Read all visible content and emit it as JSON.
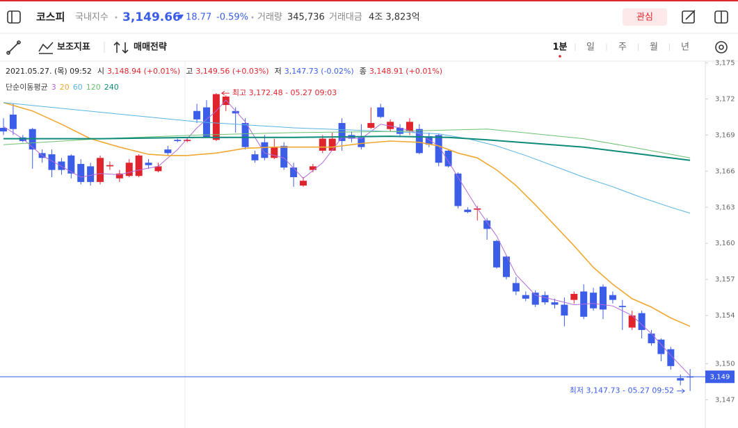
{
  "header": {
    "name": "코스피",
    "market": "국내지수",
    "price": "3,149.66",
    "change": "18.77",
    "change_rate": "-0.59%",
    "volume_label": "거래량",
    "volume": "345,736",
    "amount_label": "거래대금",
    "amount": "4조 3,823억",
    "watch": "관심"
  },
  "toolbar": {
    "indicators": "보조지표",
    "strategy": "매매전략",
    "periods": [
      "1분",
      "일",
      "주",
      "월",
      "년"
    ],
    "selected": 0
  },
  "chart_data": {
    "type": "candlestick",
    "info": {
      "date": "2021.05.27. (목) 09:52",
      "items": [
        {
          "name": "시",
          "value": "3,148.94 (+0.01%)",
          "color": "#e0242e"
        },
        {
          "name": "고",
          "value": "3,149.56 (+0.03%)",
          "color": "#e0242e"
        },
        {
          "name": "저",
          "value": "3,147.73 (-0.02%)",
          "color": "#3b5de7"
        },
        {
          "name": "종",
          "value": "3,148.91 (+0.01%)",
          "color": "#e0242e"
        }
      ]
    },
    "ma_title": "단순이동평균",
    "up_color": "#e0242e",
    "down_color": "#3b5de7",
    "ohlc": {
      "open": [
        3169.6,
        3170.7,
        3168.8,
        3169.5,
        3167.5,
        3167.4,
        3166.8,
        3167.3,
        3166.6,
        3166.4,
        3165.1,
        3166.4,
        3165.4,
        3165.6,
        3165.6,
        3166.7,
        3166.0,
        3167.8,
        3168.6,
        3168.5,
        3171.0,
        3171.3,
        3168.6,
        3171.5,
        3171.0,
        3170.0,
        3167.4,
        3168.4,
        3167.1,
        3168.1,
        3166.3,
        3164.8,
        3166.1,
        3167.7,
        3167.7,
        3170.0,
        3169.0,
        3168.8,
        3169.6,
        3171.3,
        3169.5,
        3169.6,
        3169.3,
        3169.5,
        3168.9,
        3169.0,
        3167.7,
        3165.8,
        3162.8,
        3162.8,
        3161.9,
        3160.2,
        3158.9,
        3156.7,
        3155.7,
        3155.9,
        3155.7,
        3155.1,
        3154.9,
        3155.3,
        3156.0,
        3155.9,
        3156.4,
        3155.7,
        3154.8,
        3153.0,
        3154.2,
        3152.5,
        3152.0,
        3151.2,
        3148.8,
        3148.94
      ],
      "high": [
        3170.4,
        3171.6,
        3169.0,
        3169.6,
        3167.8,
        3167.8,
        3167.1,
        3167.4,
        3167.0,
        3166.7,
        3167.3,
        3166.8,
        3166.1,
        3167.0,
        3167.4,
        3167.0,
        3166.7,
        3168.1,
        3168.7,
        3168.8,
        3171.6,
        3171.9,
        3172.48,
        3172.3,
        3171.3,
        3170.4,
        3167.7,
        3169.0,
        3168.7,
        3168.4,
        3166.7,
        3165.5,
        3166.6,
        3169.0,
        3169.2,
        3170.4,
        3169.3,
        3169.9,
        3171.3,
        3171.6,
        3170.3,
        3169.9,
        3170.4,
        3169.9,
        3169.2,
        3169.1,
        3167.8,
        3165.9,
        3163.0,
        3163.1,
        3162.1,
        3160.3,
        3159.0,
        3157.2,
        3156.0,
        3156.1,
        3156.0,
        3155.4,
        3155.5,
        3156.0,
        3156.6,
        3156.3,
        3156.6,
        3156.0,
        3155.3,
        3154.4,
        3154.4,
        3152.8,
        3152.1,
        3151.4,
        3149.1,
        3149.56
      ],
      "low": [
        3169.0,
        3169.0,
        3168.4,
        3166.2,
        3166.7,
        3165.5,
        3165.7,
        3165.4,
        3164.9,
        3164.8,
        3164.9,
        3166.1,
        3165.1,
        3165.5,
        3165.5,
        3166.2,
        3165.9,
        3167.3,
        3168.4,
        3168.4,
        3170.0,
        3168.8,
        3168.5,
        3171.0,
        3169.2,
        3167.8,
        3166.7,
        3166.9,
        3167.0,
        3166.1,
        3164.7,
        3164.7,
        3165.9,
        3167.5,
        3167.7,
        3167.7,
        3168.4,
        3167.8,
        3169.5,
        3170.4,
        3169.3,
        3168.9,
        3169.0,
        3167.4,
        3168.0,
        3166.4,
        3166.3,
        3162.9,
        3162.5,
        3161.9,
        3160.3,
        3157.9,
        3157.0,
        3155.7,
        3155.2,
        3154.7,
        3154.9,
        3154.6,
        3153.1,
        3155.0,
        3153.7,
        3154.4,
        3153.7,
        3155.0,
        3152.8,
        3152.8,
        3152.1,
        3151.5,
        3150.2,
        3149.5,
        3148.2,
        3147.73
      ],
      "close": [
        3169.3,
        3169.5,
        3168.5,
        3167.8,
        3167.1,
        3166.1,
        3166.1,
        3165.8,
        3165.1,
        3165.1,
        3167.1,
        3166.5,
        3165.8,
        3166.7,
        3167.3,
        3166.5,
        3166.4,
        3167.5,
        3168.5,
        3168.6,
        3170.3,
        3168.8,
        3172.4,
        3172.2,
        3170.8,
        3168.0,
        3166.9,
        3167.1,
        3168.0,
        3166.3,
        3165.5,
        3165.2,
        3166.4,
        3168.7,
        3168.7,
        3168.5,
        3168.7,
        3168.0,
        3170.0,
        3170.5,
        3170.1,
        3169.1,
        3170.1,
        3167.5,
        3168.2,
        3166.7,
        3166.4,
        3163.1,
        3162.6,
        3162.9,
        3161.2,
        3158.0,
        3157.2,
        3156.0,
        3155.4,
        3154.9,
        3155.1,
        3154.9,
        3154.0,
        3155.8,
        3153.9,
        3154.6,
        3154.5,
        3155.3,
        3154.7,
        3154.0,
        3152.8,
        3151.7,
        3150.8,
        3149.8,
        3148.6,
        3148.91
      ]
    },
    "series": [
      {
        "name": "3",
        "color": "#b36ad9",
        "x": [
          0,
          2,
          4,
          6,
          8,
          10,
          12,
          14,
          16,
          18,
          20,
          22,
          23,
          25,
          27,
          29,
          31,
          33,
          35,
          37,
          39,
          41,
          43,
          45,
          47,
          49,
          51,
          53,
          55,
          57,
          59,
          61,
          63,
          65,
          67,
          69,
          71
        ],
        "values": [
          3169.7,
          3168.7,
          3167.3,
          3166.4,
          3165.5,
          3165.8,
          3165.7,
          3166.1,
          3166.4,
          3167.8,
          3169.6,
          3171.0,
          3171.9,
          3170.1,
          3167.5,
          3167.1,
          3165.4,
          3166.7,
          3168.8,
          3168.7,
          3169.9,
          3169.6,
          3169.1,
          3168.1,
          3165.5,
          3162.9,
          3160.6,
          3157.4,
          3155.7,
          3155.3,
          3154.9,
          3155.0,
          3154.8,
          3154.0,
          3152.5,
          3150.7,
          3149.0
        ]
      },
      {
        "name": "20",
        "color": "#f0a830",
        "x": [
          0,
          3,
          6,
          9,
          12,
          15,
          17,
          19,
          22,
          25,
          28,
          31,
          34,
          37,
          40,
          43,
          45,
          47,
          49,
          51,
          53,
          55,
          57,
          59,
          61,
          63,
          65,
          67,
          69,
          71
        ],
        "values": [
          3171.7,
          3171.0,
          3169.9,
          3168.7,
          3168.0,
          3167.4,
          3167.3,
          3167.3,
          3167.5,
          3167.9,
          3168.0,
          3168.0,
          3168.0,
          3168.3,
          3168.5,
          3168.4,
          3168.1,
          3167.5,
          3167.1,
          3166.1,
          3164.8,
          3163.2,
          3161.5,
          3159.8,
          3158.0,
          3156.6,
          3155.4,
          3154.7,
          3153.8,
          3153.1
        ]
      },
      {
        "name": "60",
        "color": "#58b4e0",
        "x": [
          0,
          10,
          20,
          30,
          40,
          45,
          48,
          51,
          54,
          57,
          60,
          63,
          66,
          69,
          71
        ],
        "values": [
          3171.7,
          3170.9,
          3170.1,
          3169.6,
          3169.3,
          3169.1,
          3168.7,
          3168.1,
          3167.3,
          3166.4,
          3165.5,
          3164.7,
          3163.8,
          3163.0,
          3162.5
        ]
      },
      {
        "name": "120",
        "color": "#6cc070",
        "x": [
          0,
          10,
          20,
          30,
          40,
          50,
          55,
          60,
          65,
          71
        ],
        "values": [
          3168.2,
          3168.7,
          3169.0,
          3169.2,
          3169.3,
          3169.5,
          3169.1,
          3168.7,
          3168.0,
          3167.1
        ]
      },
      {
        "name": "240",
        "color": "#0d8a78",
        "x": [
          0,
          10,
          20,
          30,
          40,
          46,
          50,
          55,
          60,
          65,
          71
        ],
        "values": [
          3168.7,
          3168.7,
          3168.8,
          3168.8,
          3168.9,
          3168.8,
          3168.6,
          3168.3,
          3168.0,
          3167.5,
          3166.9
        ]
      }
    ],
    "xlim": [
      -0.36,
      72.5
    ],
    "ylim": [
      3145,
      3175.2
    ],
    "yticks": [
      {
        "value": 3147,
        "label": "3,147"
      },
      {
        "value": 3150,
        "label": "3,150"
      },
      {
        "value": 3154,
        "label": "3,154"
      },
      {
        "value": 3157,
        "label": "3,157"
      },
      {
        "value": 3160,
        "label": "3,160"
      },
      {
        "value": 3163,
        "label": "3,163"
      },
      {
        "value": 3166,
        "label": "3,166"
      },
      {
        "value": 3169,
        "label": "3,169"
      },
      {
        "value": 3172,
        "label": "3,172"
      },
      {
        "value": 3175,
        "label": "3,175"
      }
    ],
    "current": {
      "value": 3148.91,
      "label": "3,149"
    },
    "annotations": [
      {
        "text": "최고 3,172.48 - 05.27 09:03",
        "value": 3172.48,
        "color": "#e0242e"
      },
      {
        "text": "최저 3,147.73 - 05.27 09:52",
        "value": 3147.73,
        "color": "#3b5de7"
      }
    ]
  }
}
